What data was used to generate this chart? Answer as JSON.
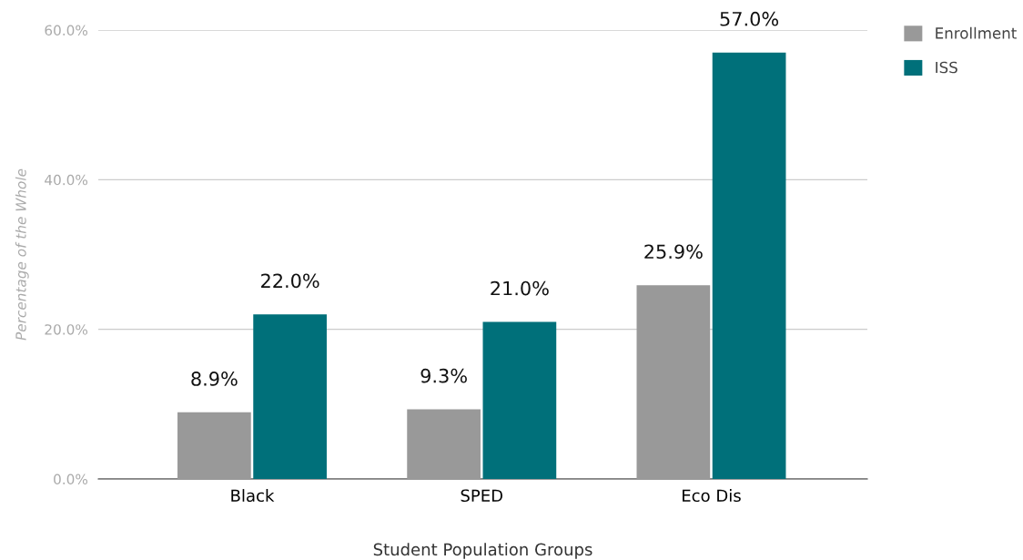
{
  "chart_data": {
    "type": "bar",
    "xlabel": "Student Population Groups",
    "ylabel": "Percentage of the Whole",
    "categories": [
      "Black",
      "SPED",
      "Eco Dis"
    ],
    "series": [
      {
        "name": "Enrollment",
        "color": "#999999",
        "values": [
          8.9,
          9.3,
          25.9
        ],
        "value_labels": [
          "8.9%",
          "9.3%",
          "25.9%"
        ]
      },
      {
        "name": "ISS",
        "color": "#00707a",
        "values": [
          22.0,
          21.0,
          57.0
        ],
        "value_labels": [
          "22.0%",
          "21.0%",
          "57.0%"
        ]
      }
    ],
    "ylim": [
      0,
      60
    ],
    "yticks": [
      {
        "value": 0,
        "label": "0.0%"
      },
      {
        "value": 20,
        "label": "20.0%"
      },
      {
        "value": 40,
        "label": "40.0%"
      },
      {
        "value": 60,
        "label": "60.0%"
      }
    ],
    "grid": "y",
    "legend": "top right"
  }
}
